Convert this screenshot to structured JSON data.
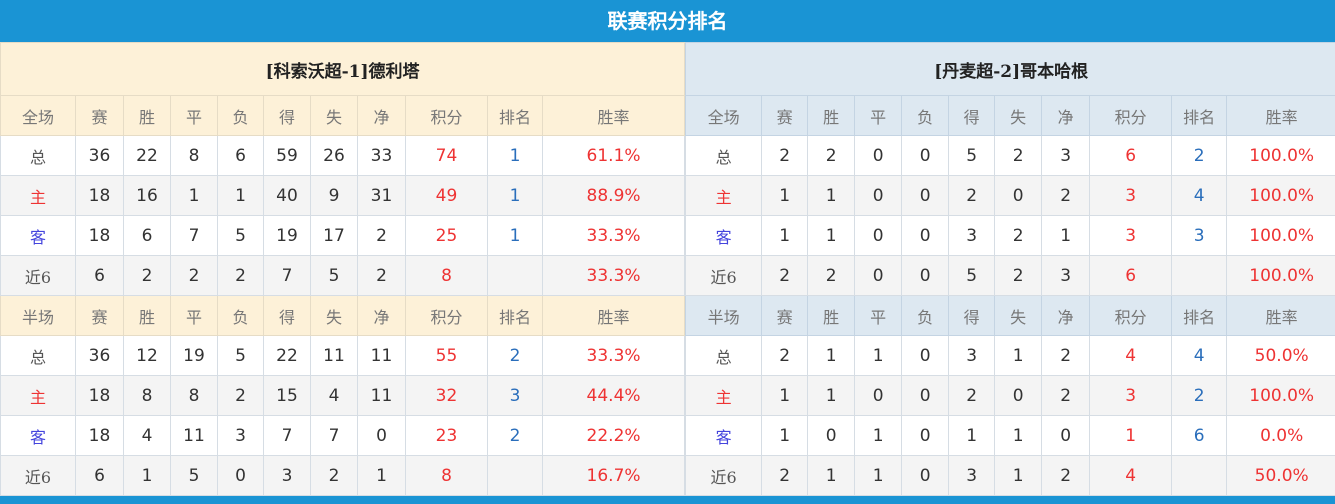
{
  "title": "联赛积分排名",
  "colors": {
    "header_bar": "#1a94d4",
    "points": "#ee3333",
    "rank": "#2a6ebb",
    "home_label": "#ee3333",
    "away_label": "#4444dd"
  },
  "teams": [
    {
      "name": "[科索沃超-1]德利塔",
      "sections": [
        {
          "header": [
            "全场",
            "赛",
            "胜",
            "平",
            "负",
            "得",
            "失",
            "净",
            "积分",
            "排名",
            "胜率"
          ],
          "rows": [
            [
              "总",
              "36",
              "22",
              "8",
              "6",
              "59",
              "26",
              "33",
              "74",
              "1",
              "61.1%"
            ],
            [
              "主",
              "18",
              "16",
              "1",
              "1",
              "40",
              "9",
              "31",
              "49",
              "1",
              "88.9%"
            ],
            [
              "客",
              "18",
              "6",
              "7",
              "5",
              "19",
              "17",
              "2",
              "25",
              "1",
              "33.3%"
            ],
            [
              "近6",
              "6",
              "2",
              "2",
              "2",
              "7",
              "5",
              "2",
              "8",
              "",
              "33.3%"
            ]
          ]
        },
        {
          "header": [
            "半场",
            "赛",
            "胜",
            "平",
            "负",
            "得",
            "失",
            "净",
            "积分",
            "排名",
            "胜率"
          ],
          "rows": [
            [
              "总",
              "36",
              "12",
              "19",
              "5",
              "22",
              "11",
              "11",
              "55",
              "2",
              "33.3%"
            ],
            [
              "主",
              "18",
              "8",
              "8",
              "2",
              "15",
              "4",
              "11",
              "32",
              "3",
              "44.4%"
            ],
            [
              "客",
              "18",
              "4",
              "11",
              "3",
              "7",
              "7",
              "0",
              "23",
              "2",
              "22.2%"
            ],
            [
              "近6",
              "6",
              "1",
              "5",
              "0",
              "3",
              "2",
              "1",
              "8",
              "",
              "16.7%"
            ]
          ]
        }
      ]
    },
    {
      "name": "[丹麦超-2]哥本哈根",
      "sections": [
        {
          "header": [
            "全场",
            "赛",
            "胜",
            "平",
            "负",
            "得",
            "失",
            "净",
            "积分",
            "排名",
            "胜率"
          ],
          "rows": [
            [
              "总",
              "2",
              "2",
              "0",
              "0",
              "5",
              "2",
              "3",
              "6",
              "2",
              "100.0%"
            ],
            [
              "主",
              "1",
              "1",
              "0",
              "0",
              "2",
              "0",
              "2",
              "3",
              "4",
              "100.0%"
            ],
            [
              "客",
              "1",
              "1",
              "0",
              "0",
              "3",
              "2",
              "1",
              "3",
              "3",
              "100.0%"
            ],
            [
              "近6",
              "2",
              "2",
              "0",
              "0",
              "5",
              "2",
              "3",
              "6",
              "",
              "100.0%"
            ]
          ]
        },
        {
          "header": [
            "半场",
            "赛",
            "胜",
            "平",
            "负",
            "得",
            "失",
            "净",
            "积分",
            "排名",
            "胜率"
          ],
          "rows": [
            [
              "总",
              "2",
              "1",
              "1",
              "0",
              "3",
              "1",
              "2",
              "4",
              "4",
              "50.0%"
            ],
            [
              "主",
              "1",
              "1",
              "0",
              "0",
              "2",
              "0",
              "2",
              "3",
              "2",
              "100.0%"
            ],
            [
              "客",
              "1",
              "0",
              "1",
              "0",
              "1",
              "1",
              "0",
              "1",
              "6",
              "0.0%"
            ],
            [
              "近6",
              "2",
              "1",
              "1",
              "0",
              "3",
              "1",
              "2",
              "4",
              "",
              "50.0%"
            ]
          ]
        }
      ]
    }
  ]
}
